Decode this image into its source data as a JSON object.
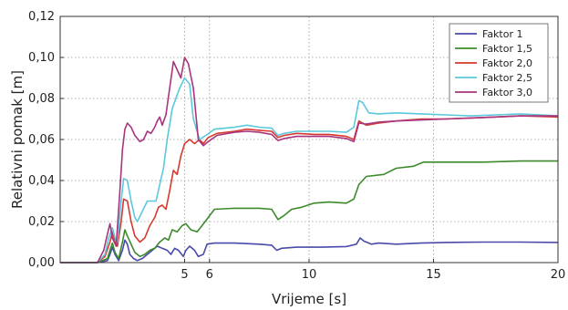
{
  "chart_data": {
    "type": "line",
    "xlabel": "Vrijeme [s]",
    "ylabel": "Relativni pomak [m]",
    "xlim": [
      0,
      20
    ],
    "ylim": [
      0,
      0.12
    ],
    "x_ticks": [
      {
        "value": 5,
        "label": "5"
      },
      {
        "value": 6,
        "label": "6"
      },
      {
        "value": 10,
        "label": "10"
      },
      {
        "value": 15,
        "label": "15"
      },
      {
        "value": 20,
        "label": "20"
      }
    ],
    "y_ticks": [
      {
        "value": 0,
        "label": "0,00"
      },
      {
        "value": 0.02,
        "label": "0,02"
      },
      {
        "value": 0.04,
        "label": "0,04"
      },
      {
        "value": 0.06,
        "label": "0,06"
      },
      {
        "value": 0.08,
        "label": "0,08"
      },
      {
        "value": 0.1,
        "label": "0,10"
      },
      {
        "value": 0.12,
        "label": "0,12"
      }
    ],
    "grid": true,
    "legend_position": "top-right",
    "series": [
      {
        "name": "Faktor 1",
        "color": "#4a4aaa",
        "points": [
          [
            0,
            0
          ],
          [
            1.5,
            0
          ],
          [
            1.9,
            0.001
          ],
          [
            2.0,
            0.004
          ],
          [
            2.1,
            0.0075
          ],
          [
            2.2,
            0.004
          ],
          [
            2.35,
            0.001
          ],
          [
            2.5,
            0.006
          ],
          [
            2.6,
            0.011
          ],
          [
            2.7,
            0.009
          ],
          [
            2.8,
            0.004
          ],
          [
            2.95,
            0.002
          ],
          [
            3.1,
            0.001
          ],
          [
            3.3,
            0.002
          ],
          [
            3.5,
            0.004
          ],
          [
            3.7,
            0.006
          ],
          [
            3.9,
            0.008
          ],
          [
            4.1,
            0.007
          ],
          [
            4.3,
            0.006
          ],
          [
            4.45,
            0.004
          ],
          [
            4.6,
            0.007
          ],
          [
            4.75,
            0.006
          ],
          [
            4.95,
            0.003
          ],
          [
            5.05,
            0.006
          ],
          [
            5.2,
            0.008
          ],
          [
            5.4,
            0.006
          ],
          [
            5.55,
            0.003
          ],
          [
            5.75,
            0.004
          ],
          [
            5.9,
            0.009
          ],
          [
            6.2,
            0.0095
          ],
          [
            7.0,
            0.0095
          ],
          [
            8.0,
            0.009
          ],
          [
            8.5,
            0.0085
          ],
          [
            8.7,
            0.006
          ],
          [
            8.9,
            0.007
          ],
          [
            9.5,
            0.0075
          ],
          [
            10.5,
            0.0075
          ],
          [
            11.5,
            0.0078
          ],
          [
            11.9,
            0.009
          ],
          [
            12.05,
            0.012
          ],
          [
            12.2,
            0.0105
          ],
          [
            12.5,
            0.009
          ],
          [
            12.8,
            0.0095
          ],
          [
            13.5,
            0.009
          ],
          [
            14.5,
            0.0095
          ],
          [
            15.5,
            0.0098
          ],
          [
            17.0,
            0.01
          ],
          [
            18.5,
            0.01
          ],
          [
            20,
            0.0098
          ]
        ]
      },
      {
        "name": "Faktor 1,5",
        "color": "#3d8a2c",
        "points": [
          [
            0,
            0
          ],
          [
            1.5,
            0
          ],
          [
            1.9,
            0.002
          ],
          [
            2.0,
            0.006
          ],
          [
            2.1,
            0.0095
          ],
          [
            2.2,
            0.005
          ],
          [
            2.35,
            0.002
          ],
          [
            2.5,
            0.01
          ],
          [
            2.6,
            0.016
          ],
          [
            2.7,
            0.013
          ],
          [
            2.85,
            0.009
          ],
          [
            3.0,
            0.005
          ],
          [
            3.2,
            0.003
          ],
          [
            3.4,
            0.004
          ],
          [
            3.6,
            0.006
          ],
          [
            3.8,
            0.007
          ],
          [
            4.0,
            0.01
          ],
          [
            4.2,
            0.012
          ],
          [
            4.35,
            0.011
          ],
          [
            4.5,
            0.016
          ],
          [
            4.7,
            0.015
          ],
          [
            4.9,
            0.018
          ],
          [
            5.05,
            0.019
          ],
          [
            5.25,
            0.016
          ],
          [
            5.5,
            0.015
          ],
          [
            5.7,
            0.018
          ],
          [
            5.95,
            0.022
          ],
          [
            6.2,
            0.026
          ],
          [
            7.0,
            0.0265
          ],
          [
            8.0,
            0.0265
          ],
          [
            8.5,
            0.026
          ],
          [
            8.75,
            0.021
          ],
          [
            9.0,
            0.023
          ],
          [
            9.3,
            0.026
          ],
          [
            9.7,
            0.027
          ],
          [
            10.2,
            0.029
          ],
          [
            10.8,
            0.0295
          ],
          [
            11.5,
            0.029
          ],
          [
            11.8,
            0.031
          ],
          [
            12.0,
            0.038
          ],
          [
            12.3,
            0.042
          ],
          [
            13.0,
            0.043
          ],
          [
            13.5,
            0.046
          ],
          [
            14.2,
            0.047
          ],
          [
            14.6,
            0.049
          ],
          [
            15.5,
            0.049
          ],
          [
            17.0,
            0.049
          ],
          [
            18.5,
            0.0495
          ],
          [
            20,
            0.0495
          ]
        ]
      },
      {
        "name": "Faktor 2,0",
        "color": "#d63a2e",
        "points": [
          [
            0,
            0
          ],
          [
            1.5,
            0
          ],
          [
            1.8,
            0.003
          ],
          [
            2.0,
            0.01
          ],
          [
            2.1,
            0.015
          ],
          [
            2.2,
            0.01
          ],
          [
            2.3,
            0.008
          ],
          [
            2.45,
            0.02
          ],
          [
            2.55,
            0.031
          ],
          [
            2.7,
            0.03
          ],
          [
            2.85,
            0.02
          ],
          [
            3.0,
            0.013
          ],
          [
            3.2,
            0.01
          ],
          [
            3.4,
            0.012
          ],
          [
            3.6,
            0.018
          ],
          [
            3.8,
            0.022
          ],
          [
            3.95,
            0.027
          ],
          [
            4.1,
            0.028
          ],
          [
            4.25,
            0.026
          ],
          [
            4.4,
            0.035
          ],
          [
            4.55,
            0.045
          ],
          [
            4.7,
            0.043
          ],
          [
            4.85,
            0.052
          ],
          [
            5.0,
            0.058
          ],
          [
            5.2,
            0.06
          ],
          [
            5.4,
            0.058
          ],
          [
            5.6,
            0.06
          ],
          [
            5.75,
            0.058
          ],
          [
            5.95,
            0.061
          ],
          [
            6.3,
            0.063
          ],
          [
            7.0,
            0.064
          ],
          [
            7.5,
            0.065
          ],
          [
            8.0,
            0.0645
          ],
          [
            8.5,
            0.064
          ],
          [
            8.75,
            0.061
          ],
          [
            9.0,
            0.062
          ],
          [
            9.5,
            0.063
          ],
          [
            10.2,
            0.0625
          ],
          [
            10.8,
            0.0625
          ],
          [
            11.5,
            0.0615
          ],
          [
            11.8,
            0.06
          ],
          [
            12.0,
            0.069
          ],
          [
            12.3,
            0.067
          ],
          [
            12.8,
            0.068
          ],
          [
            13.5,
            0.069
          ],
          [
            14.5,
            0.07
          ],
          [
            15.5,
            0.07
          ],
          [
            16.5,
            0.0705
          ],
          [
            17.5,
            0.071
          ],
          [
            18.5,
            0.0715
          ],
          [
            20,
            0.071
          ]
        ]
      },
      {
        "name": "Faktor 2,5",
        "color": "#5bc8dc",
        "points": [
          [
            0,
            0
          ],
          [
            1.5,
            0
          ],
          [
            1.8,
            0.004
          ],
          [
            1.95,
            0.012
          ],
          [
            2.1,
            0.017
          ],
          [
            2.2,
            0.012
          ],
          [
            2.3,
            0.01
          ],
          [
            2.45,
            0.03
          ],
          [
            2.55,
            0.041
          ],
          [
            2.7,
            0.04
          ],
          [
            2.85,
            0.03
          ],
          [
            3.0,
            0.022
          ],
          [
            3.1,
            0.02
          ],
          [
            3.3,
            0.025
          ],
          [
            3.5,
            0.03
          ],
          [
            3.7,
            0.03
          ],
          [
            3.85,
            0.03
          ],
          [
            4.0,
            0.038
          ],
          [
            4.15,
            0.046
          ],
          [
            4.3,
            0.06
          ],
          [
            4.5,
            0.075
          ],
          [
            4.65,
            0.08
          ],
          [
            4.8,
            0.085
          ],
          [
            5.0,
            0.09
          ],
          [
            5.2,
            0.087
          ],
          [
            5.35,
            0.07
          ],
          [
            5.6,
            0.06
          ],
          [
            5.85,
            0.062
          ],
          [
            6.2,
            0.065
          ],
          [
            7.0,
            0.066
          ],
          [
            7.5,
            0.067
          ],
          [
            8.0,
            0.066
          ],
          [
            8.5,
            0.0655
          ],
          [
            8.75,
            0.062
          ],
          [
            9.0,
            0.063
          ],
          [
            9.5,
            0.064
          ],
          [
            10.2,
            0.064
          ],
          [
            10.8,
            0.064
          ],
          [
            11.5,
            0.0635
          ],
          [
            11.8,
            0.066
          ],
          [
            12.0,
            0.079
          ],
          [
            12.15,
            0.078
          ],
          [
            12.4,
            0.073
          ],
          [
            12.8,
            0.0725
          ],
          [
            13.5,
            0.073
          ],
          [
            14.5,
            0.0725
          ],
          [
            15.5,
            0.072
          ],
          [
            16.5,
            0.0715
          ],
          [
            17.5,
            0.072
          ],
          [
            18.5,
            0.0725
          ],
          [
            20,
            0.0715
          ]
        ]
      },
      {
        "name": "Faktor 3,0",
        "color": "#a8357e",
        "points": [
          [
            0,
            0
          ],
          [
            1.5,
            0
          ],
          [
            1.75,
            0.006
          ],
          [
            1.9,
            0.014
          ],
          [
            2.0,
            0.019
          ],
          [
            2.1,
            0.012
          ],
          [
            2.25,
            0.008
          ],
          [
            2.4,
            0.035
          ],
          [
            2.5,
            0.055
          ],
          [
            2.6,
            0.065
          ],
          [
            2.7,
            0.068
          ],
          [
            2.85,
            0.066
          ],
          [
            3.0,
            0.062
          ],
          [
            3.2,
            0.059
          ],
          [
            3.35,
            0.06
          ],
          [
            3.5,
            0.064
          ],
          [
            3.65,
            0.063
          ],
          [
            3.8,
            0.066
          ],
          [
            3.9,
            0.069
          ],
          [
            4.0,
            0.071
          ],
          [
            4.1,
            0.067
          ],
          [
            4.25,
            0.072
          ],
          [
            4.4,
            0.085
          ],
          [
            4.55,
            0.098
          ],
          [
            4.7,
            0.094
          ],
          [
            4.85,
            0.09
          ],
          [
            5.0,
            0.1
          ],
          [
            5.15,
            0.097
          ],
          [
            5.35,
            0.085
          ],
          [
            5.55,
            0.06
          ],
          [
            5.75,
            0.057
          ],
          [
            5.95,
            0.059
          ],
          [
            6.3,
            0.062
          ],
          [
            7.0,
            0.0635
          ],
          [
            7.5,
            0.064
          ],
          [
            8.0,
            0.0635
          ],
          [
            8.5,
            0.0625
          ],
          [
            8.75,
            0.0595
          ],
          [
            9.0,
            0.0605
          ],
          [
            9.5,
            0.0615
          ],
          [
            10.2,
            0.0615
          ],
          [
            10.8,
            0.0615
          ],
          [
            11.5,
            0.0605
          ],
          [
            11.8,
            0.059
          ],
          [
            12.0,
            0.068
          ],
          [
            12.3,
            0.0675
          ],
          [
            12.8,
            0.0685
          ],
          [
            13.5,
            0.069
          ],
          [
            14.5,
            0.0695
          ],
          [
            15.5,
            0.07
          ],
          [
            16.5,
            0.0705
          ],
          [
            17.5,
            0.071
          ],
          [
            18.5,
            0.0715
          ],
          [
            20,
            0.0715
          ]
        ]
      }
    ]
  }
}
